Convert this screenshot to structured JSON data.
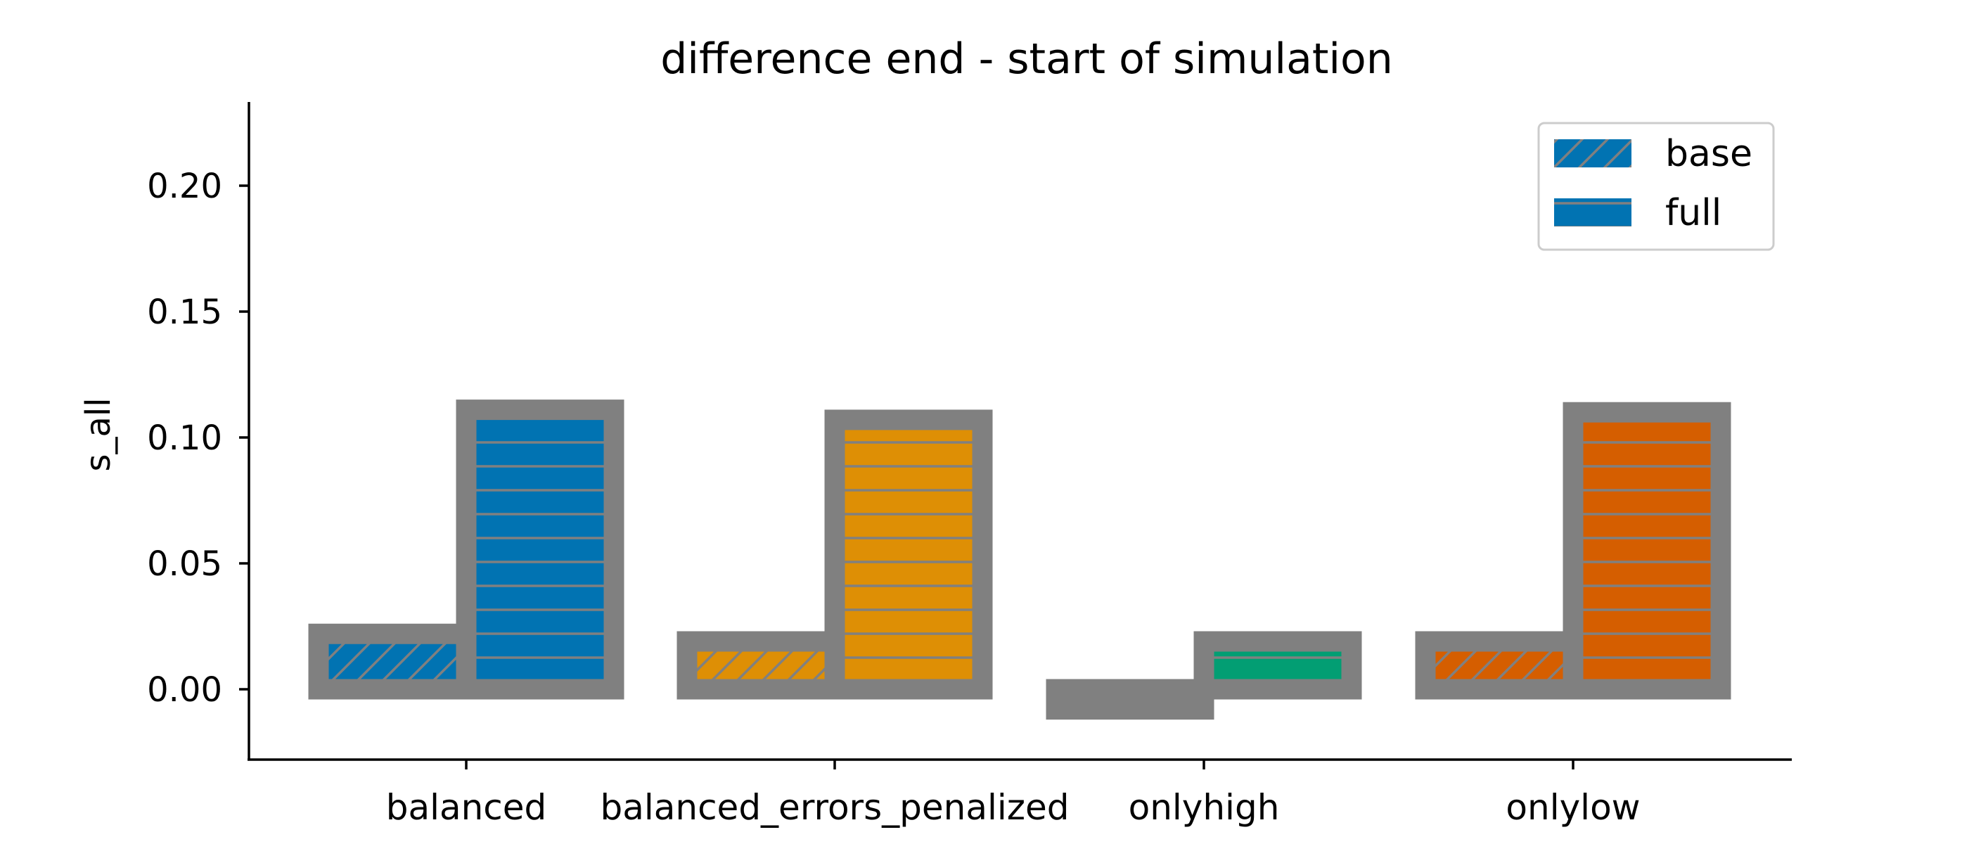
{
  "chart_data": {
    "type": "bar",
    "title": "difference end - start of simulation",
    "xlabel": "",
    "ylabel": "s_all",
    "categories": [
      "balanced",
      "balanced_errors_penalized",
      "onlyhigh",
      "onlylow"
    ],
    "series": [
      {
        "name": "base",
        "values": [
          0.022,
          0.019,
          -0.008,
          0.019
        ],
        "hatch": "diagonal"
      },
      {
        "name": "full",
        "values": [
          0.111,
          0.107,
          0.019,
          0.11
        ],
        "hatch": "horizontal"
      }
    ],
    "category_colors": [
      "#0173b2",
      "#de8f05",
      "#029e73",
      "#d55e00"
    ],
    "edge_color": "#808080",
    "hatch_color": "#808080",
    "legend_swatch_color": "#0173b2",
    "ylim": [
      -0.03,
      0.225
    ],
    "yticks": [
      "0.00",
      "0.05",
      "0.10",
      "0.15",
      "0.20"
    ],
    "legend_position": "top-right",
    "grid": false
  }
}
